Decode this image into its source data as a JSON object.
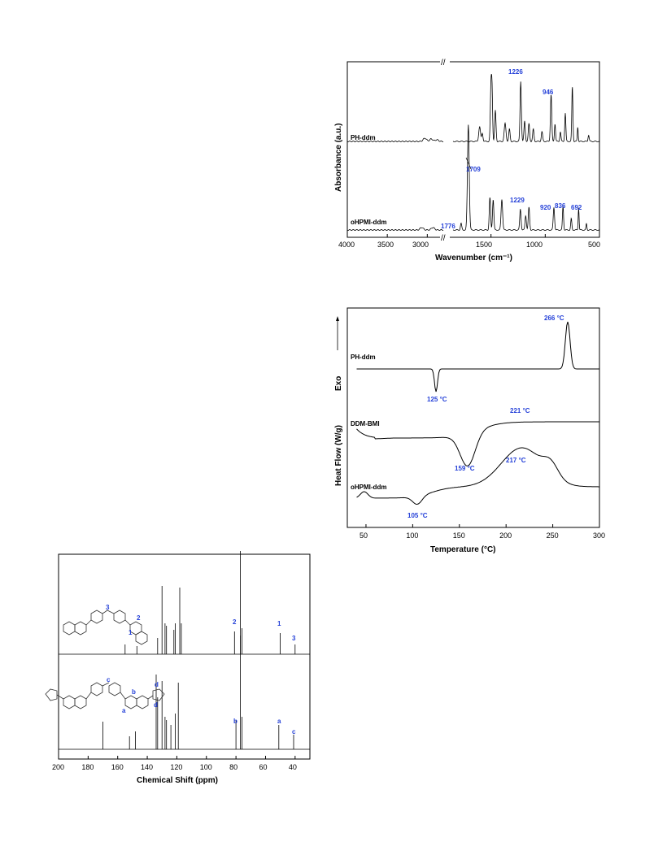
{
  "chart_data": [
    {
      "type": "line",
      "xlabel": "Wavenumber (cm⁻¹)",
      "ylabel": "Absorbance (a.u.)",
      "x_ticks": [
        4000,
        3500,
        3000,
        1500,
        1000,
        500
      ],
      "x_tick_labels": [
        "4000",
        "3500",
        "3000",
        "1500",
        "1000",
        "500"
      ],
      "axis_break": "//",
      "series": [
        {
          "name": "PH-ddm",
          "peak_labels": [
            "1226",
            "946"
          ]
        },
        {
          "name": "oHPMI-ddm",
          "peak_labels": [
            "1709",
            "1776",
            "1229",
            "920",
            "836",
            "692"
          ]
        }
      ]
    },
    {
      "type": "line",
      "xlabel": "Temperature (°C)",
      "ylabel": "Heat Flow (W/g)",
      "exo_label": "Exo",
      "xlim": [
        30,
        300
      ],
      "x_ticks": [
        50,
        100,
        150,
        200,
        250,
        300
      ],
      "x_tick_labels": [
        "50",
        "100",
        "150",
        "200",
        "250",
        "300"
      ],
      "series": [
        {
          "name": "PH-ddm",
          "annotations": [
            "125 °C",
            "266 °C"
          ]
        },
        {
          "name": "DDM-BMI",
          "annotations": [
            "159 °C",
            "221 °C"
          ]
        },
        {
          "name": "oHPMI-ddm",
          "annotations": [
            "105 °C",
            "217 °C"
          ]
        }
      ]
    },
    {
      "type": "line",
      "xlabel": "Chemical Shift (ppm)",
      "xlim": [
        200,
        30
      ],
      "x_ticks": [
        200,
        180,
        160,
        140,
        120,
        100,
        80,
        60,
        40
      ],
      "x_tick_labels": [
        "200",
        "180",
        "160",
        "140",
        "120",
        "100",
        "80",
        "60",
        "40"
      ],
      "series": [
        {
          "name": "",
          "peak_labels": [
            "2",
            "1",
            "3"
          ],
          "structure_labels": [
            "3",
            "2",
            "1"
          ]
        },
        {
          "name": "",
          "peak_labels": [
            "d",
            "b",
            "a",
            "c"
          ],
          "structure_labels": [
            "c",
            "b",
            "d",
            "a"
          ]
        }
      ]
    }
  ]
}
